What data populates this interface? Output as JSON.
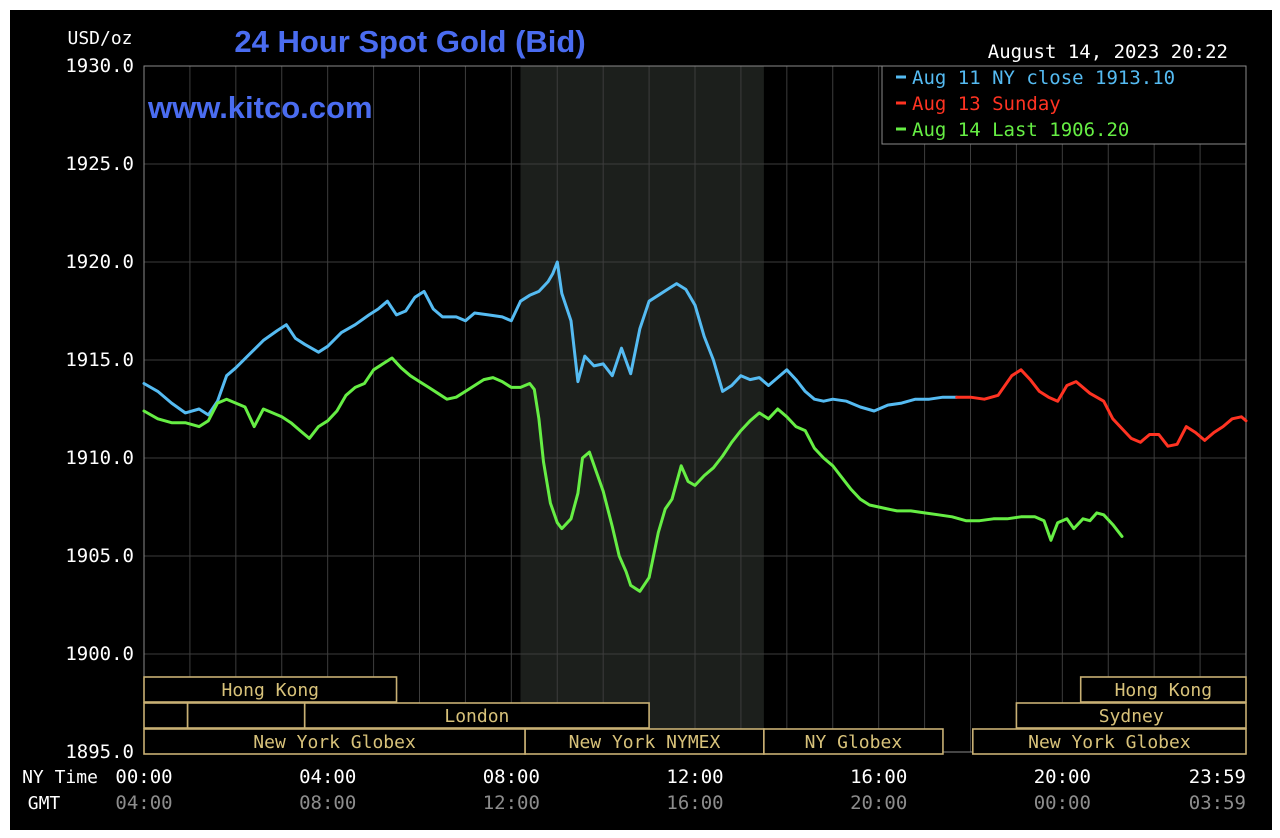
{
  "chart_data": {
    "type": "line",
    "title": "24 Hour Spot Gold (Bid)",
    "watermark": "www.kitco.com",
    "timestamp": "August 14, 2023 20:22",
    "ylabel": "USD/oz",
    "ylim": [
      1895,
      1930
    ],
    "y_ticks": [
      "1930.0",
      "1925.0",
      "1920.0",
      "1915.0",
      "1910.0",
      "1905.0",
      "1900.0",
      "1895.0"
    ],
    "x_row_labels": [
      "NY Time",
      "GMT"
    ],
    "x_ticks_ny": [
      "00:00",
      "04:00",
      "08:00",
      "12:00",
      "16:00",
      "20:00",
      "23:59"
    ],
    "x_ticks_gmt": [
      "04:00",
      "08:00",
      "12:00",
      "16:00",
      "20:00",
      "00:00",
      "03:59"
    ],
    "x_unit": "hours (NY time)",
    "xlim": [
      0,
      24
    ],
    "grid": true,
    "legend_position": "top-right",
    "highlight_hours": [
      8.2,
      13.5
    ],
    "series": [
      {
        "name": "Aug 11 NY close 1913.10",
        "color": "#55bbf2",
        "points": [
          [
            0,
            1913.8
          ],
          [
            0.3,
            1913.4
          ],
          [
            0.6,
            1912.8
          ],
          [
            0.9,
            1912.3
          ],
          [
            1.2,
            1912.5
          ],
          [
            1.4,
            1912.2
          ],
          [
            1.6,
            1912.9
          ],
          [
            1.8,
            1914.2
          ],
          [
            2.0,
            1914.6
          ],
          [
            2.3,
            1915.3
          ],
          [
            2.6,
            1916.0
          ],
          [
            2.9,
            1916.5
          ],
          [
            3.1,
            1916.8
          ],
          [
            3.3,
            1916.1
          ],
          [
            3.5,
            1915.8
          ],
          [
            3.8,
            1915.4
          ],
          [
            4.0,
            1915.7
          ],
          [
            4.3,
            1916.4
          ],
          [
            4.6,
            1916.8
          ],
          [
            4.9,
            1917.3
          ],
          [
            5.1,
            1917.6
          ],
          [
            5.3,
            1918.0
          ],
          [
            5.5,
            1917.3
          ],
          [
            5.7,
            1917.5
          ],
          [
            5.9,
            1918.2
          ],
          [
            6.1,
            1918.5
          ],
          [
            6.3,
            1917.6
          ],
          [
            6.5,
            1917.2
          ],
          [
            6.8,
            1917.2
          ],
          [
            7.0,
            1917.0
          ],
          [
            7.2,
            1917.4
          ],
          [
            7.5,
            1917.3
          ],
          [
            7.8,
            1917.2
          ],
          [
            8.0,
            1917.0
          ],
          [
            8.2,
            1918.0
          ],
          [
            8.4,
            1918.3
          ],
          [
            8.6,
            1918.5
          ],
          [
            8.8,
            1919.0
          ],
          [
            8.9,
            1919.4
          ],
          [
            9.0,
            1920.0
          ],
          [
            9.1,
            1918.4
          ],
          [
            9.3,
            1917.0
          ],
          [
            9.45,
            1913.9
          ],
          [
            9.6,
            1915.2
          ],
          [
            9.8,
            1914.7
          ],
          [
            10.0,
            1914.8
          ],
          [
            10.2,
            1914.2
          ],
          [
            10.4,
            1915.6
          ],
          [
            10.6,
            1914.3
          ],
          [
            10.8,
            1916.6
          ],
          [
            11.0,
            1918.0
          ],
          [
            11.2,
            1918.3
          ],
          [
            11.4,
            1918.6
          ],
          [
            11.6,
            1918.9
          ],
          [
            11.8,
            1918.6
          ],
          [
            12.0,
            1917.8
          ],
          [
            12.2,
            1916.2
          ],
          [
            12.4,
            1915.0
          ],
          [
            12.6,
            1913.4
          ],
          [
            12.8,
            1913.7
          ],
          [
            13.0,
            1914.2
          ],
          [
            13.2,
            1914.0
          ],
          [
            13.4,
            1914.1
          ],
          [
            13.6,
            1913.7
          ],
          [
            13.8,
            1914.1
          ],
          [
            14.0,
            1914.5
          ],
          [
            14.2,
            1914.0
          ],
          [
            14.4,
            1913.4
          ],
          [
            14.6,
            1913.0
          ],
          [
            14.8,
            1912.9
          ],
          [
            15.0,
            1913.0
          ],
          [
            15.3,
            1912.9
          ],
          [
            15.6,
            1912.6
          ],
          [
            15.9,
            1912.4
          ],
          [
            16.2,
            1912.7
          ],
          [
            16.5,
            1912.8
          ],
          [
            16.8,
            1913.0
          ],
          [
            17.1,
            1913.0
          ],
          [
            17.4,
            1913.1
          ],
          [
            17.7,
            1913.1
          ]
        ]
      },
      {
        "name": "Aug 13 Sunday",
        "color": "#ff3322",
        "points": [
          [
            17.7,
            1913.1
          ],
          [
            18.0,
            1913.1
          ],
          [
            18.3,
            1913.0
          ],
          [
            18.6,
            1913.2
          ],
          [
            18.9,
            1914.2
          ],
          [
            19.1,
            1914.5
          ],
          [
            19.3,
            1914.0
          ],
          [
            19.5,
            1913.4
          ],
          [
            19.7,
            1913.1
          ],
          [
            19.9,
            1912.9
          ],
          [
            20.1,
            1913.7
          ],
          [
            20.3,
            1913.9
          ],
          [
            20.6,
            1913.3
          ],
          [
            20.9,
            1912.9
          ],
          [
            21.1,
            1912.0
          ],
          [
            21.3,
            1911.5
          ],
          [
            21.5,
            1911.0
          ],
          [
            21.7,
            1910.8
          ],
          [
            21.9,
            1911.2
          ],
          [
            22.1,
            1911.2
          ],
          [
            22.3,
            1910.6
          ],
          [
            22.5,
            1910.7
          ],
          [
            22.7,
            1911.6
          ],
          [
            22.9,
            1911.3
          ],
          [
            23.1,
            1910.9
          ],
          [
            23.3,
            1911.3
          ],
          [
            23.5,
            1911.6
          ],
          [
            23.7,
            1912.0
          ],
          [
            23.9,
            1912.1
          ],
          [
            24.0,
            1911.9
          ]
        ]
      },
      {
        "name": "Aug 14 Last 1906.20",
        "color": "#66ee44",
        "points": [
          [
            0,
            1912.4
          ],
          [
            0.3,
            1912.0
          ],
          [
            0.6,
            1911.8
          ],
          [
            0.9,
            1911.8
          ],
          [
            1.2,
            1911.6
          ],
          [
            1.4,
            1911.9
          ],
          [
            1.6,
            1912.8
          ],
          [
            1.8,
            1913.0
          ],
          [
            2.0,
            1912.8
          ],
          [
            2.2,
            1912.6
          ],
          [
            2.4,
            1911.6
          ],
          [
            2.6,
            1912.5
          ],
          [
            2.8,
            1912.3
          ],
          [
            3.0,
            1912.1
          ],
          [
            3.2,
            1911.8
          ],
          [
            3.4,
            1911.4
          ],
          [
            3.6,
            1911.0
          ],
          [
            3.8,
            1911.6
          ],
          [
            4.0,
            1911.9
          ],
          [
            4.2,
            1912.4
          ],
          [
            4.4,
            1913.2
          ],
          [
            4.6,
            1913.6
          ],
          [
            4.8,
            1913.8
          ],
          [
            5.0,
            1914.5
          ],
          [
            5.2,
            1914.8
          ],
          [
            5.4,
            1915.1
          ],
          [
            5.6,
            1914.6
          ],
          [
            5.8,
            1914.2
          ],
          [
            6.0,
            1913.9
          ],
          [
            6.2,
            1913.6
          ],
          [
            6.4,
            1913.3
          ],
          [
            6.6,
            1913.0
          ],
          [
            6.8,
            1913.1
          ],
          [
            7.0,
            1913.4
          ],
          [
            7.2,
            1913.7
          ],
          [
            7.4,
            1914.0
          ],
          [
            7.6,
            1914.1
          ],
          [
            7.8,
            1913.9
          ],
          [
            8.0,
            1913.6
          ],
          [
            8.2,
            1913.6
          ],
          [
            8.4,
            1913.8
          ],
          [
            8.5,
            1913.5
          ],
          [
            8.6,
            1912.0
          ],
          [
            8.7,
            1909.8
          ],
          [
            8.85,
            1907.7
          ],
          [
            9.0,
            1906.7
          ],
          [
            9.1,
            1906.4
          ],
          [
            9.3,
            1906.9
          ],
          [
            9.45,
            1908.2
          ],
          [
            9.55,
            1910.0
          ],
          [
            9.7,
            1910.3
          ],
          [
            9.85,
            1909.3
          ],
          [
            10.0,
            1908.3
          ],
          [
            10.2,
            1906.5
          ],
          [
            10.35,
            1905.0
          ],
          [
            10.5,
            1904.2
          ],
          [
            10.6,
            1903.5
          ],
          [
            10.8,
            1903.2
          ],
          [
            11.0,
            1903.9
          ],
          [
            11.2,
            1906.2
          ],
          [
            11.35,
            1907.4
          ],
          [
            11.5,
            1907.9
          ],
          [
            11.7,
            1909.6
          ],
          [
            11.85,
            1908.8
          ],
          [
            12.0,
            1908.6
          ],
          [
            12.2,
            1909.1
          ],
          [
            12.4,
            1909.5
          ],
          [
            12.6,
            1910.1
          ],
          [
            12.8,
            1910.8
          ],
          [
            13.0,
            1911.4
          ],
          [
            13.2,
            1911.9
          ],
          [
            13.4,
            1912.3
          ],
          [
            13.6,
            1912.0
          ],
          [
            13.8,
            1912.5
          ],
          [
            14.0,
            1912.1
          ],
          [
            14.2,
            1911.6
          ],
          [
            14.4,
            1911.4
          ],
          [
            14.6,
            1910.5
          ],
          [
            14.8,
            1910.0
          ],
          [
            15.0,
            1909.6
          ],
          [
            15.2,
            1909.0
          ],
          [
            15.4,
            1908.4
          ],
          [
            15.6,
            1907.9
          ],
          [
            15.8,
            1907.6
          ],
          [
            16.0,
            1907.5
          ],
          [
            16.2,
            1907.4
          ],
          [
            16.4,
            1907.3
          ],
          [
            16.7,
            1907.3
          ],
          [
            17.0,
            1907.2
          ],
          [
            17.3,
            1907.1
          ],
          [
            17.6,
            1907.0
          ],
          [
            17.9,
            1906.8
          ],
          [
            18.2,
            1906.8
          ],
          [
            18.5,
            1906.9
          ],
          [
            18.8,
            1906.9
          ],
          [
            19.1,
            1907.0
          ],
          [
            19.4,
            1907.0
          ],
          [
            19.6,
            1906.8
          ],
          [
            19.75,
            1905.8
          ],
          [
            19.9,
            1906.7
          ],
          [
            20.1,
            1906.9
          ],
          [
            20.25,
            1906.4
          ],
          [
            20.45,
            1906.9
          ],
          [
            20.6,
            1906.8
          ],
          [
            20.75,
            1907.2
          ],
          [
            20.9,
            1907.1
          ],
          [
            21.1,
            1906.6
          ],
          [
            21.3,
            1906.0
          ]
        ]
      }
    ]
  },
  "sessions": [
    {
      "label": "Hong Kong",
      "row": 0,
      "start": 0,
      "end": 5.5
    },
    {
      "label": "Hong Kong",
      "row": 0,
      "start": 20.4,
      "end": 24
    },
    {
      "label": "",
      "row": 1,
      "start": 0,
      "end": 0.95
    },
    {
      "label": "",
      "row": 1,
      "start": 0.95,
      "end": 3.5
    },
    {
      "label": "London",
      "row": 1,
      "start": 3.5,
      "end": 11.0
    },
    {
      "label": "Sydney",
      "row": 1,
      "start": 19.0,
      "end": 24
    },
    {
      "label": "New York Globex",
      "row": 2,
      "start": 0,
      "end": 8.3
    },
    {
      "label": "New York NYMEX",
      "row": 2,
      "start": 8.3,
      "end": 13.5
    },
    {
      "label": "NY Globex",
      "row": 2,
      "start": 13.5,
      "end": 17.4
    },
    {
      "label": "New York Globex",
      "row": 2,
      "start": 18.05,
      "end": 24
    }
  ]
}
